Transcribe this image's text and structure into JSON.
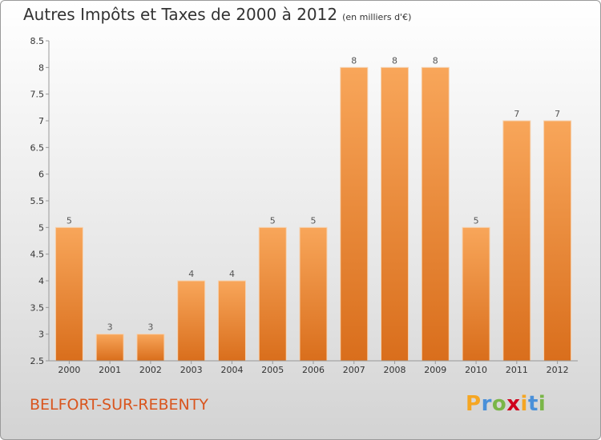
{
  "header": {
    "title": "Autres Impôts et Taxes de 2000 à 2012",
    "unit_note": "(en milliers d'€)"
  },
  "footer": {
    "city": "BELFORT-SUR-REBENTY",
    "logo": {
      "letters": [
        "P",
        "r",
        "o",
        "x",
        "i",
        "t",
        "i"
      ],
      "colors": [
        "#f5a623",
        "#4a90d9",
        "#7ab648",
        "#d0021b",
        "#f5a623",
        "#4a90d9",
        "#7ab648"
      ]
    }
  },
  "chart_data": {
    "type": "bar",
    "title": "Autres Impôts et Taxes de 2000 à 2012",
    "xlabel": "",
    "ylabel": "",
    "categories": [
      "2000",
      "2001",
      "2002",
      "2003",
      "2004",
      "2005",
      "2006",
      "2007",
      "2008",
      "2009",
      "2010",
      "2011",
      "2012"
    ],
    "values": [
      5,
      3,
      3,
      4,
      4,
      5,
      5,
      8,
      8,
      8,
      5,
      7,
      7
    ],
    "data_labels": [
      "5",
      "3",
      "3",
      "4",
      "4",
      "5",
      "5",
      "8",
      "8",
      "8",
      "5",
      "7",
      "7"
    ],
    "ylim": [
      2.5,
      8.5
    ],
    "yticks": [
      "2.5",
      "3",
      "3.5",
      "4",
      "4.5",
      "5",
      "5.5",
      "6",
      "6.5",
      "7",
      "7.5",
      "8",
      "8.5"
    ],
    "grid": false,
    "bar_color_top": "#f8a65a",
    "bar_color_bottom": "#d96e1c"
  }
}
